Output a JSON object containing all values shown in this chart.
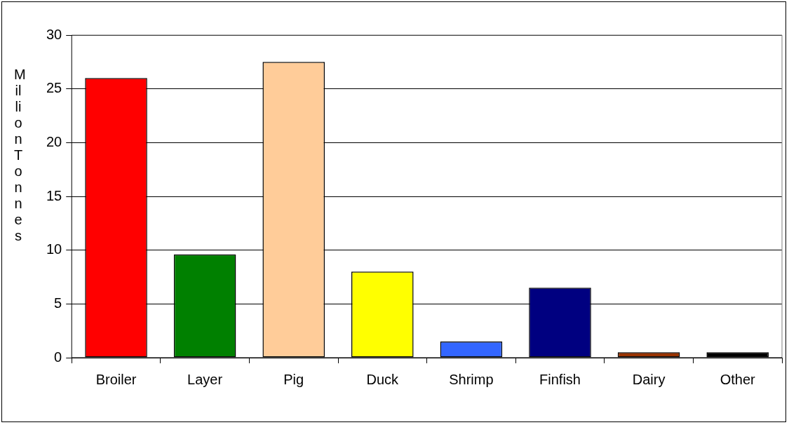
{
  "chart_data": {
    "type": "bar",
    "ylabel": "Million Tonnes",
    "categories": [
      "Broiler",
      "Layer",
      "Pig",
      "Duck",
      "Shrimp",
      "Finfish",
      "Dairy",
      "Other"
    ],
    "values": [
      26,
      9.6,
      27.5,
      8,
      1.5,
      6.5,
      0.5,
      0.5
    ],
    "colors": [
      "#ff0000",
      "#008000",
      "#ffcc99",
      "#ffff00",
      "#3366ff",
      "#000080",
      "#993300",
      "#000000"
    ],
    "ylim": [
      0,
      30
    ],
    "yticks": [
      0,
      5,
      10,
      15,
      20,
      25,
      30
    ],
    "grid": "y",
    "legend": false
  }
}
